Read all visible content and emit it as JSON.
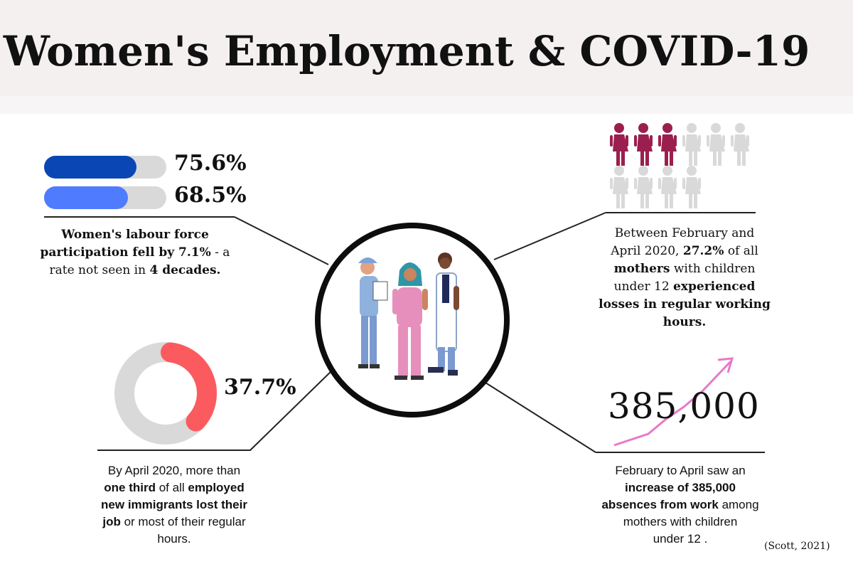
{
  "header": {
    "title": "Women's Employment & COVID-19"
  },
  "participation": {
    "stats": [
      {
        "label": "75.6%",
        "fraction": 0.756,
        "color": "#0a47b5"
      },
      {
        "label": "68.5%",
        "fraction": 0.685,
        "color": "#4f7bff"
      }
    ],
    "caption": {
      "l1": "Women's labour force",
      "l2a": "participation fell by ",
      "l2b": "7.1%",
      "l2c": " - a",
      "l3a": "rate not seen in ",
      "l3b": "4 decades."
    }
  },
  "mothers": {
    "highlighted": 3,
    "total": 10,
    "highlight_color": "#9b1f4e",
    "muted_color": "#d9d9d9",
    "caption": {
      "l1": "Between February and",
      "l2a": "April 2020, ",
      "l2b": "27.2%",
      "l2c": " of all",
      "l3a": "mothers",
      "l3b": " with children",
      "l4a": "under 12 ",
      "l4b": "experienced",
      "l5": "losses in regular working",
      "l6": "hours."
    }
  },
  "immigrants": {
    "label": "37.7%",
    "fraction": 0.377,
    "color": "#fb5b5f",
    "track_color": "#d9d9d9",
    "caption": {
      "l1": "By April 2020, more than",
      "l2a": "one third",
      "l2b": " of all ",
      "l2c": "employed",
      "l3": "new immigrants lost their",
      "l4a": "job",
      "l4b": " or most of their regular",
      "l5": "hours."
    }
  },
  "absences": {
    "number": "385,000",
    "arrow_color": "#e879c9",
    "caption": {
      "l1": "February to April saw an",
      "l2": "increase of 385,000",
      "l3a": "absences from work",
      "l3b": " among",
      "l4": "mothers with children",
      "l5": "under 12 ."
    }
  },
  "citation": "(Scott, 2021)"
}
